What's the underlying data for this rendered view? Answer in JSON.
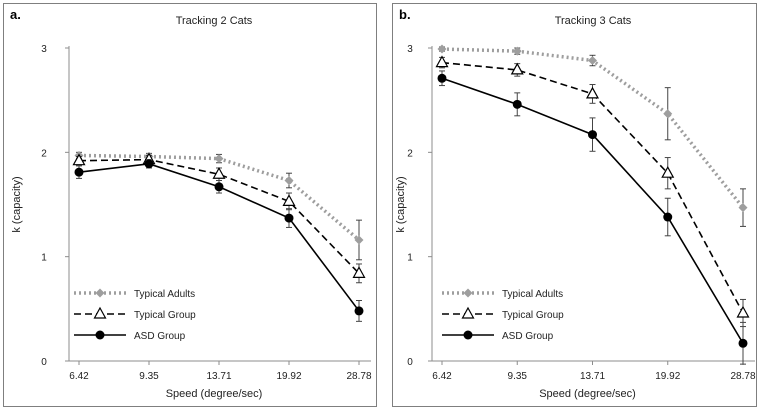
{
  "chart_data": [
    {
      "type": "line",
      "panel_label": "a.",
      "title": "Tracking 2 Cats",
      "xlabel": "Speed (degree/sec)",
      "ylabel": "k (capacity)",
      "categories": [
        "6.42",
        "9.35",
        "13.71",
        "19.92",
        "28.78"
      ],
      "ylim": [
        0,
        3
      ],
      "yticks": [
        "0",
        "1",
        "2",
        "3"
      ],
      "grid": false,
      "legend_position": "bottom-left",
      "series": [
        {
          "name": "Typical Adults",
          "style": "dotted",
          "marker": "filled-diamond",
          "color": "#9e9e9e",
          "values": [
            1.97,
            1.96,
            1.94,
            1.73,
            1.16
          ],
          "errors": [
            0.03,
            0.03,
            0.04,
            0.07,
            0.19
          ]
        },
        {
          "name": "Typical Group",
          "style": "dashed",
          "marker": "open-triangle",
          "color": "#000000",
          "values": [
            1.92,
            1.93,
            1.79,
            1.53,
            0.84
          ],
          "errors": [
            0.04,
            0.04,
            0.06,
            0.08,
            0.09
          ]
        },
        {
          "name": "ASD Group",
          "style": "solid",
          "marker": "filled-circle",
          "color": "#000000",
          "values": [
            1.81,
            1.89,
            1.67,
            1.37,
            0.48
          ],
          "errors": [
            0.06,
            0.04,
            0.06,
            0.09,
            0.1
          ]
        }
      ]
    },
    {
      "type": "line",
      "panel_label": "b.",
      "title": "Tracking 3 Cats",
      "xlabel": "Speed (degree/sec)",
      "ylabel": "k (capacity)",
      "categories": [
        "6.42",
        "9.35",
        "13.71",
        "19.92",
        "28.78"
      ],
      "ylim": [
        0,
        3
      ],
      "yticks": [
        "0",
        "1",
        "2",
        "3"
      ],
      "grid": false,
      "legend_position": "bottom-left",
      "series": [
        {
          "name": "Typical Adults",
          "style": "dotted",
          "marker": "filled-diamond",
          "color": "#9e9e9e",
          "values": [
            2.99,
            2.97,
            2.88,
            2.37,
            1.47
          ],
          "errors": [
            0.02,
            0.03,
            0.05,
            0.25,
            0.18
          ]
        },
        {
          "name": "Typical Group",
          "style": "dashed",
          "marker": "open-triangle",
          "color": "#000000",
          "values": [
            2.86,
            2.79,
            2.56,
            1.8,
            0.46
          ],
          "errors": [
            0.05,
            0.06,
            0.09,
            0.15,
            0.13
          ]
        },
        {
          "name": "ASD Group",
          "style": "solid",
          "marker": "filled-circle",
          "color": "#000000",
          "values": [
            2.71,
            2.46,
            2.17,
            1.38,
            0.17
          ],
          "errors": [
            0.07,
            0.11,
            0.16,
            0.18,
            0.2
          ]
        }
      ]
    }
  ]
}
